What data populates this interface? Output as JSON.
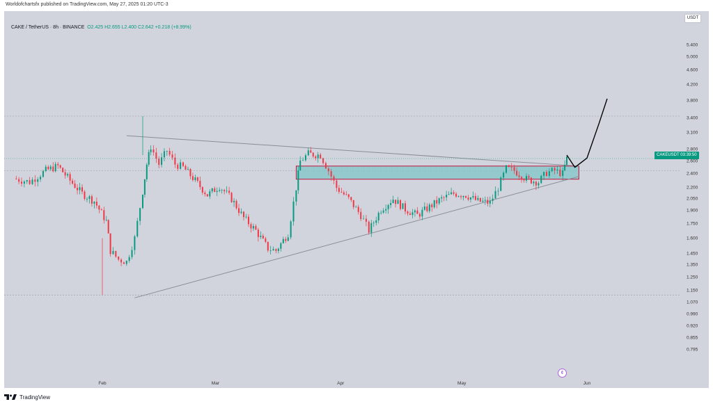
{
  "publish_line": "Worldofchartsfx published on TradingView.com, May 27, 2025 01:20 UTC-3",
  "legend": {
    "symbol": "CAKE / TetherUS · 8h · BINANCE",
    "open": "O2.425",
    "high": "H2.655",
    "low": "L2.400",
    "close": "C2.642",
    "change": "+0.218 (+8.99%)"
  },
  "price_scale": {
    "currency": "USDT",
    "ticks": [
      "5.400",
      "5.000",
      "4.600",
      "4.200",
      "3.800",
      "3.400",
      "3.100",
      "2.800",
      "2.600",
      "2.400",
      "2.200",
      "2.050",
      "1.900",
      "1.750",
      "1.600",
      "1.450",
      "1.350",
      "1.250",
      "1.150",
      "1.070",
      "0.990",
      "0.920",
      "0.855",
      "0.795"
    ]
  },
  "time_scale": {
    "ticks": [
      "Feb",
      "Mar",
      "Apr",
      "May",
      "Jun"
    ]
  },
  "last_price_tag": "CAKEUSDT  03:39:50",
  "event_marker": "¢",
  "brand": "TradingView",
  "colors": {
    "up": "#089981",
    "down": "#f23645",
    "panel": "#d1d4dc",
    "zone_fill": "#7fc6c8",
    "zone_border": "#c0143c",
    "trendline": "#8a8d96",
    "projection": "#000000"
  },
  "chart_data": {
    "type": "candlestick",
    "symbol": "CAKE / TetherUS",
    "interval": "8h",
    "exchange": "BINANCE",
    "price_axis": "log",
    "close_path": [
      {
        "date": "2025-01-10",
        "close": 2.33
      },
      {
        "date": "2025-01-14",
        "close": 2.28
      },
      {
        "date": "2025-01-18",
        "close": 2.45
      },
      {
        "date": "2025-01-21",
        "close": 2.52
      },
      {
        "date": "2025-01-24",
        "close": 2.3
      },
      {
        "date": "2025-01-27",
        "close": 2.12
      },
      {
        "date": "2025-01-30",
        "close": 2.02
      },
      {
        "date": "2025-02-02",
        "close": 1.78
      },
      {
        "date": "2025-02-03",
        "close": 1.48
      },
      {
        "date": "2025-02-05",
        "close": 1.4
      },
      {
        "date": "2025-02-07",
        "close": 1.38
      },
      {
        "date": "2025-02-09",
        "close": 1.6
      },
      {
        "date": "2025-02-11",
        "close": 2.15
      },
      {
        "date": "2025-02-12",
        "close": 2.55
      },
      {
        "date": "2025-02-13",
        "close": 2.85
      },
      {
        "date": "2025-02-15",
        "close": 2.55
      },
      {
        "date": "2025-02-17",
        "close": 2.78
      },
      {
        "date": "2025-02-19",
        "close": 2.55
      },
      {
        "date": "2025-02-21",
        "close": 2.5
      },
      {
        "date": "2025-02-24",
        "close": 2.3
      },
      {
        "date": "2025-02-27",
        "close": 2.1
      },
      {
        "date": "2025-03-02",
        "close": 2.22
      },
      {
        "date": "2025-03-05",
        "close": 2.05
      },
      {
        "date": "2025-03-08",
        "close": 1.82
      },
      {
        "date": "2025-03-11",
        "close": 1.68
      },
      {
        "date": "2025-03-14",
        "close": 1.5
      },
      {
        "date": "2025-03-16",
        "close": 1.48
      },
      {
        "date": "2025-03-19",
        "close": 1.65
      },
      {
        "date": "2025-03-21",
        "close": 2.2
      },
      {
        "date": "2025-03-22",
        "close": 2.6
      },
      {
        "date": "2025-03-24",
        "close": 2.72
      },
      {
        "date": "2025-03-27",
        "close": 2.7
      },
      {
        "date": "2025-03-29",
        "close": 2.45
      },
      {
        "date": "2025-03-31",
        "close": 2.2
      },
      {
        "date": "2025-04-03",
        "close": 2.05
      },
      {
        "date": "2025-04-06",
        "close": 1.85
      },
      {
        "date": "2025-04-08",
        "close": 1.68
      },
      {
        "date": "2025-04-11",
        "close": 1.92
      },
      {
        "date": "2025-04-14",
        "close": 2.05
      },
      {
        "date": "2025-04-17",
        "close": 1.92
      },
      {
        "date": "2025-04-20",
        "close": 1.85
      },
      {
        "date": "2025-04-23",
        "close": 1.95
      },
      {
        "date": "2025-04-26",
        "close": 2.05
      },
      {
        "date": "2025-04-29",
        "close": 2.12
      },
      {
        "date": "2025-05-02",
        "close": 2.1
      },
      {
        "date": "2025-05-05",
        "close": 2.02
      },
      {
        "date": "2025-05-08",
        "close": 2.0
      },
      {
        "date": "2025-05-10",
        "close": 2.2
      },
      {
        "date": "2025-05-12",
        "close": 2.48
      },
      {
        "date": "2025-05-14",
        "close": 2.45
      },
      {
        "date": "2025-05-17",
        "close": 2.32
      },
      {
        "date": "2025-05-20",
        "close": 2.28
      },
      {
        "date": "2025-05-22",
        "close": 2.42
      },
      {
        "date": "2025-05-24",
        "close": 2.45
      },
      {
        "date": "2025-05-26",
        "close": 2.4
      },
      {
        "date": "2025-05-27",
        "close": 2.642
      }
    ],
    "drawings": {
      "descending_trendline": [
        {
          "date": "2025-02-07",
          "price": 3.05
        },
        {
          "date": "2025-05-30",
          "price": 2.52
        }
      ],
      "ascending_trendline": [
        {
          "date": "2025-02-09",
          "price": 1.1
        },
        {
          "date": "2025-05-30",
          "price": 2.36
        }
      ],
      "resistance_zone": {
        "from": "2025-03-21",
        "to": "2025-05-30",
        "top": 2.52,
        "bottom": 2.32
      },
      "projection_path": [
        {
          "date": "2025-05-27",
          "price": 2.7
        },
        {
          "date": "2025-05-29",
          "price": 2.5
        },
        {
          "date": "2025-06-01",
          "price": 2.65
        },
        {
          "date": "2025-06-04",
          "price": 3.3
        },
        {
          "date": "2025-06-06",
          "price": 3.85
        }
      ],
      "reference_levels": [
        3.45,
        2.45,
        1.12
      ]
    }
  }
}
